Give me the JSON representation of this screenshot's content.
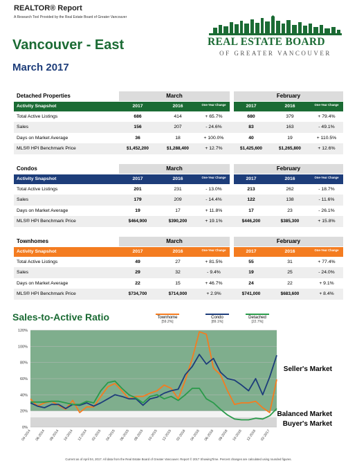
{
  "header": {
    "report_title": "REALTOR® Report",
    "report_subtitle": "A Research Tool Provided by the Real Estate Board of Greater Vancouver",
    "area": "Vancouver - East",
    "period": "March 2017",
    "logo": {
      "line1": "REAL ESTATE BOARD",
      "line2": "OF GREATER VANCOUVER"
    }
  },
  "columns": {
    "month1": "March",
    "month2": "February",
    "snapshot": "Activity Snapshot",
    "y1": "2017",
    "y2": "2016",
    "change": "One-Year Change"
  },
  "sections": [
    {
      "title": "Detached Properties",
      "color": "#1b6b34",
      "rows": [
        {
          "label": "Total Active Listings",
          "m17": "686",
          "m16": "414",
          "mch": "+ 65.7%",
          "f17": "680",
          "f16": "379",
          "fch": "+ 79.4%"
        },
        {
          "label": "Sales",
          "m17": "156",
          "m16": "207",
          "mch": "- 24.6%",
          "f17": "83",
          "f16": "163",
          "fch": "- 49.1%"
        },
        {
          "label": "Days on Market Average",
          "m17": "36",
          "m16": "18",
          "mch": "+ 100.0%",
          "f17": "40",
          "f16": "19",
          "fch": "+ 110.5%"
        },
        {
          "label": "MLS® HPI Benchmark Price",
          "m17": "$1,452,200",
          "m16": "$1,288,400",
          "mch": "+ 12.7%",
          "f17": "$1,425,600",
          "f16": "$1,265,800",
          "fch": "+ 12.6%"
        }
      ]
    },
    {
      "title": "Condos",
      "color": "#1d3d7a",
      "rows": [
        {
          "label": "Total Active Listings",
          "m17": "201",
          "m16": "231",
          "mch": "- 13.0%",
          "f17": "213",
          "f16": "262",
          "fch": "- 18.7%"
        },
        {
          "label": "Sales",
          "m17": "179",
          "m16": "209",
          "mch": "- 14.4%",
          "f17": "122",
          "f16": "138",
          "fch": "- 11.6%"
        },
        {
          "label": "Days on Market Average",
          "m17": "19",
          "m16": "17",
          "mch": "+ 11.8%",
          "f17": "17",
          "f16": "23",
          "fch": "- 26.1%"
        },
        {
          "label": "MLS® HPI Benchmark Price",
          "m17": "$464,900",
          "m16": "$390,200",
          "mch": "+ 19.1%",
          "f17": "$446,200",
          "f16": "$385,300",
          "fch": "+ 15.8%"
        }
      ]
    },
    {
      "title": "Townhomes",
      "color": "#f47c20",
      "rows": [
        {
          "label": "Total Active Listings",
          "m17": "49",
          "m16": "27",
          "mch": "+ 81.5%",
          "f17": "55",
          "f16": "31",
          "fch": "+ 77.4%"
        },
        {
          "label": "Sales",
          "m17": "29",
          "m16": "32",
          "mch": "- 9.4%",
          "f17": "19",
          "f16": "25",
          "fch": "- 24.0%"
        },
        {
          "label": "Days on Market Average",
          "m17": "22",
          "m16": "15",
          "mch": "+ 46.7%",
          "f17": "24",
          "f16": "22",
          "fch": "+ 9.1%"
        },
        {
          "label": "MLS® HPI Benchmark Price",
          "m17": "$734,700",
          "m16": "$714,000",
          "mch": "+ 2.9%",
          "f17": "$741,000",
          "f16": "$683,600",
          "fch": "+ 8.4%"
        }
      ]
    }
  ],
  "chart_data": {
    "type": "line",
    "title": "Sales-to-Active Ratio",
    "ylim": [
      0,
      120
    ],
    "yticks": [
      "0%",
      "20%",
      "40%",
      "60%",
      "80%",
      "100%",
      "120%"
    ],
    "categories": [
      "04-2014",
      "05-2014",
      "06-2014",
      "07-2014",
      "08-2014",
      "09-2014",
      "10-2014",
      "11-2014",
      "12-2014",
      "01-2015",
      "02-2015",
      "03-2015",
      "04-2015",
      "05-2015",
      "06-2015",
      "07-2015",
      "08-2015",
      "09-2015",
      "10-2015",
      "11-2015",
      "12-2015",
      "01-2016",
      "02-2016",
      "03-2016",
      "04-2016",
      "05-2016",
      "06-2016",
      "07-2016",
      "08-2016",
      "09-2016",
      "10-2016",
      "11-2016",
      "12-2016",
      "01-2017",
      "02-2017",
      "03-2017"
    ],
    "xtick_labels": [
      "04-2014",
      "06-2014",
      "08-2014",
      "10-2014",
      "12-2014",
      "02-2015",
      "04-2015",
      "06-2015",
      "08-2015",
      "10-2015",
      "12-2015",
      "02-2016",
      "04-2016",
      "06-2016",
      "08-2016",
      "10-2016",
      "12-2016",
      "02-2017"
    ],
    "zones": {
      "buyers_max": 12,
      "balanced_max": 20
    },
    "zone_labels": {
      "sellers": "Seller's Market",
      "balanced": "Balanced Market",
      "buyers": "Buyer's Market"
    },
    "series": [
      {
        "name": "Townhome",
        "ratio_label": "[59.2%]",
        "color": "#f47c20",
        "values": [
          35,
          26,
          30,
          32,
          27,
          22,
          33,
          18,
          25,
          25,
          38,
          50,
          54,
          45,
          35,
          38,
          38,
          42,
          45,
          52,
          48,
          35,
          58,
          85,
          118,
          115,
          73,
          65,
          45,
          28,
          30,
          30,
          32,
          24,
          18,
          59
        ]
      },
      {
        "name": "Condo",
        "ratio_label": "[89.1%]",
        "color": "#1d3d7a",
        "values": [
          30,
          26,
          24,
          28,
          28,
          23,
          28,
          27,
          30,
          26,
          30,
          35,
          40,
          38,
          35,
          35,
          27,
          35,
          37,
          42,
          45,
          47,
          65,
          75,
          90,
          78,
          85,
          68,
          60,
          58,
          52,
          45,
          60,
          40,
          62,
          89
        ]
      },
      {
        "name": "Detached",
        "ratio_label": "[22.7%]",
        "color": "#2a9a4a",
        "values": [
          31,
          31,
          31,
          32,
          32,
          30,
          28,
          28,
          32,
          30,
          45,
          55,
          57,
          48,
          40,
          36,
          30,
          38,
          40,
          35,
          38,
          33,
          40,
          48,
          48,
          35,
          30,
          22,
          15,
          10,
          9,
          9,
          11,
          10,
          14,
          23
        ]
      }
    ]
  },
  "footer": "Current as of April 04, 2017. All data from the Real Estate Board of Greater Vancouver. Report © 2017 ShowingTime. Percent changes are calculated using rounded figures."
}
